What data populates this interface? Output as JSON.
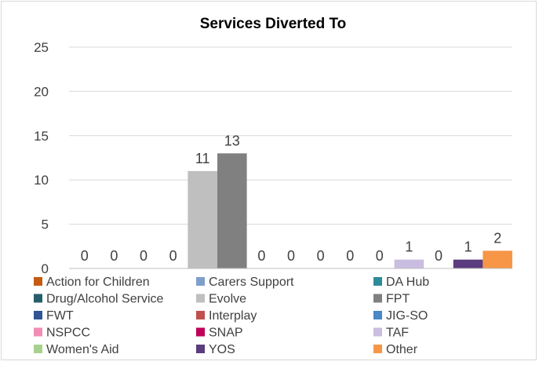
{
  "chart_data": {
    "type": "bar",
    "title": "Services Diverted To",
    "xlabel": "",
    "ylabel": "",
    "ylim": [
      0,
      25
    ],
    "yticks": [
      0,
      5,
      10,
      15,
      20,
      25
    ],
    "grid": true,
    "legend_position": "bottom",
    "series": [
      {
        "name": "Action for Children",
        "value": 0,
        "color": "#C55A11"
      },
      {
        "name": "Carers Support",
        "value": 0,
        "color": "#7F9FCB"
      },
      {
        "name": "DA Hub",
        "value": 0,
        "color": "#2E8B99"
      },
      {
        "name": "Drug/Alcohol Service",
        "value": 0,
        "color": "#255E6B"
      },
      {
        "name": "Evolve",
        "value": 11,
        "color": "#BFBFBF"
      },
      {
        "name": "FPT",
        "value": 13,
        "color": "#808080"
      },
      {
        "name": "FWT",
        "value": 0,
        "color": "#2F5597"
      },
      {
        "name": "Interplay",
        "value": 0,
        "color": "#C0504D"
      },
      {
        "name": "JIG-SO",
        "value": 0,
        "color": "#4A86C8"
      },
      {
        "name": "NSPCC",
        "value": 0,
        "color": "#F08DB5"
      },
      {
        "name": "SNAP",
        "value": 0,
        "color": "#C0005A"
      },
      {
        "name": "TAF",
        "value": 1,
        "color": "#C9BDE0"
      },
      {
        "name": "Women's Aid",
        "value": 0,
        "color": "#A9D18E"
      },
      {
        "name": "YOS",
        "value": 1,
        "color": "#5B3C7E"
      },
      {
        "name": "Other",
        "value": 2,
        "color": "#F79646"
      }
    ]
  }
}
